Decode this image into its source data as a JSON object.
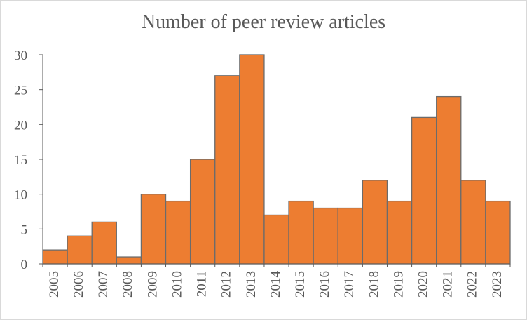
{
  "chart_data": {
    "type": "bar",
    "title": "Number of peer review articles",
    "xlabel": "",
    "ylabel": "",
    "categories": [
      "2005",
      "2006",
      "2007",
      "2008",
      "2009",
      "2010",
      "2011",
      "2012",
      "2013",
      "2014",
      "2015",
      "2016",
      "2017",
      "2018",
      "2019",
      "2020",
      "2021",
      "2022",
      "2023"
    ],
    "values": [
      2,
      4,
      6,
      1,
      10,
      9,
      15,
      27,
      30,
      7,
      9,
      8,
      8,
      12,
      9,
      21,
      24,
      12,
      9
    ],
    "ylim": [
      0,
      30
    ],
    "yticks": [
      "0",
      "5",
      "10",
      "15",
      "20",
      "25",
      "30"
    ],
    "grid": false,
    "legend": "none",
    "colors": {
      "bar_fill": "#ed7d31",
      "bar_edge": "#6b6b6b",
      "axis": "#595959"
    }
  }
}
